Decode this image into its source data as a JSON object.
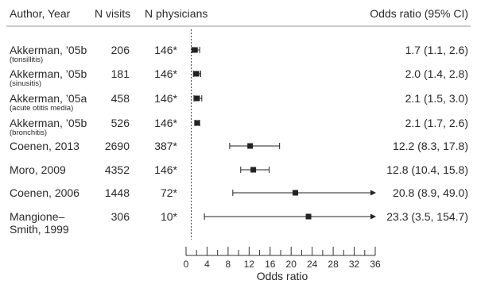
{
  "chart_data": {
    "type": "forest",
    "headers": {
      "study": "Author, Year",
      "visits": "N visits",
      "physicians": "N physicians",
      "or": "Odds ratio (95% CI)"
    },
    "xlabel": "Odds ratio",
    "xlim": [
      0,
      36
    ],
    "xticks": [
      0,
      4,
      8,
      12,
      16,
      20,
      24,
      28,
      32,
      36
    ],
    "x_minor_step": 2,
    "reference_line": 1,
    "rows": [
      {
        "study": "Akkerman, ’05b",
        "sub": "(tonsillitis)",
        "visits": "206",
        "physicians": "146*",
        "or": 1.7,
        "lo": 1.1,
        "hi": 2.6,
        "or_label": "1.7 (1.1, 2.6)"
      },
      {
        "study": "Akkerman, ’05b",
        "sub": "(sinusitis)",
        "visits": "181",
        "physicians": "146*",
        "or": 2.0,
        "lo": 1.4,
        "hi": 2.8,
        "or_label": "2.0 (1.4, 2.8)"
      },
      {
        "study": "Akkerman, ’05a",
        "sub": "(acute otitis media)",
        "visits": "458",
        "physicians": "146*",
        "or": 2.1,
        "lo": 1.5,
        "hi": 3.0,
        "or_label": "2.1 (1.5, 3.0)"
      },
      {
        "study": "Akkerman, ’05b",
        "sub": "(bronchitis)",
        "visits": "526",
        "physicians": "146*",
        "or": 2.1,
        "lo": 1.7,
        "hi": 2.6,
        "or_label": "2.1 (1.7, 2.6)"
      },
      {
        "study": "Coenen, 2013",
        "sub": "",
        "visits": "2690",
        "physicians": "387*",
        "or": 12.2,
        "lo": 8.3,
        "hi": 17.8,
        "or_label": "12.2 (8.3, 17.8)"
      },
      {
        "study": "Moro, 2009",
        "sub": "",
        "visits": "4352",
        "physicians": "146*",
        "or": 12.8,
        "lo": 10.4,
        "hi": 15.8,
        "or_label": "12.8 (10.4, 15.8)"
      },
      {
        "study": "Coenen, 2006",
        "sub": "",
        "visits": "1448",
        "physicians": "72*",
        "or": 20.8,
        "lo": 8.9,
        "hi": 49.0,
        "or_label": "20.8 (8.9, 49.0)"
      },
      {
        "study": "Mangione–",
        "sub": "Smith, 1999",
        "visits": "306",
        "physicians": "10*",
        "or": 23.3,
        "lo": 3.5,
        "hi": 154.7,
        "or_label": "23.3 (3.5, 154.7)"
      }
    ]
  }
}
